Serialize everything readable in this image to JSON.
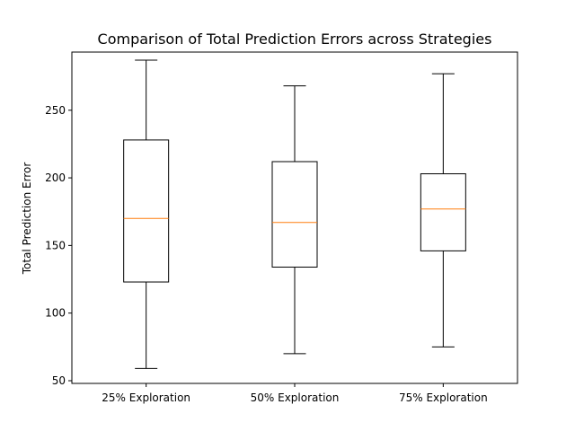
{
  "chart_data": {
    "type": "boxplot",
    "title": "Comparison of Total Prediction Errors across Strategies",
    "xlabel": "",
    "ylabel": "Total Prediction Error",
    "categories": [
      "25% Exploration",
      "50% Exploration",
      "75% Exploration"
    ],
    "ylim": [
      48,
      293
    ],
    "yticks": [
      50,
      100,
      150,
      200,
      250
    ],
    "grid": false,
    "boxes": [
      {
        "whisker_low": 59,
        "q1": 123,
        "median": 170,
        "q3": 228,
        "whisker_high": 287
      },
      {
        "whisker_low": 70,
        "q1": 134,
        "median": 167,
        "q3": 212,
        "whisker_high": 268
      },
      {
        "whisker_low": 75,
        "q1": 146,
        "median": 177,
        "q3": 203,
        "whisker_high": 277
      }
    ],
    "colors": {
      "box": "#000000",
      "median": "#ff7f0e"
    }
  }
}
